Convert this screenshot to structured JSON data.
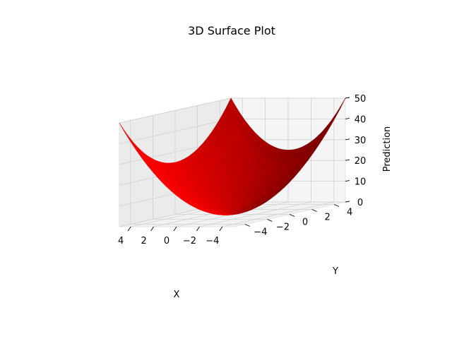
{
  "chart_data": {
    "type": "surface",
    "title": "3D Surface Plot",
    "xlabel": "X",
    "ylabel": "Y",
    "zlabel": "Prediction",
    "xlim": [
      -5,
      5
    ],
    "ylim": [
      -5,
      5
    ],
    "zlim": [
      0,
      50
    ],
    "x_ticks": [
      "−4",
      "−2",
      "0",
      "2",
      "4"
    ],
    "y_ticks": [
      "−4",
      "−2",
      "0",
      "2",
      "4"
    ],
    "z_ticks": [
      "0",
      "10",
      "20",
      "30",
      "40",
      "50"
    ],
    "x_tick_values": [
      -4,
      -2,
      0,
      2,
      4
    ],
    "y_tick_values": [
      -4,
      -2,
      0,
      2,
      4
    ],
    "z_tick_values": [
      0,
      10,
      20,
      30,
      40,
      50
    ],
    "function": "z = x^2 + y^2",
    "surface_color": "#ff0000",
    "grid": true
  }
}
